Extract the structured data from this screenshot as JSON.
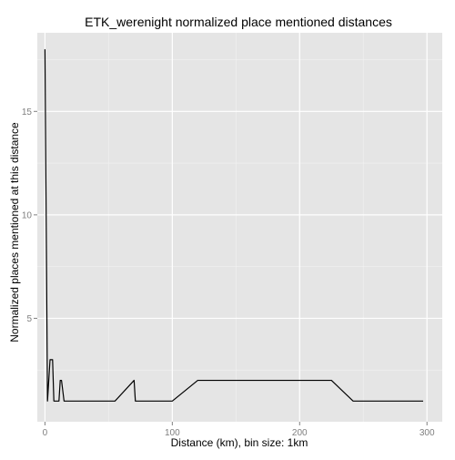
{
  "chart_data": {
    "type": "line",
    "title": "ETK_werenight normalized place mentioned distances",
    "xlabel": "Distance (km), bin size: 1km",
    "ylabel": "Normalized places mentioned at this distance",
    "xlim": [
      -6,
      312
    ],
    "ylim": [
      0.0,
      18.8
    ],
    "x_ticks": [
      0,
      100,
      200,
      300
    ],
    "y_ticks": [
      5,
      10,
      15
    ],
    "grid": true,
    "legend": "none",
    "colors": {
      "panel": "#e5e5e5",
      "grid_major": "#ffffff",
      "grid_minor": "#f2f2f2",
      "line": "#000000"
    },
    "series": [
      {
        "x": [
          0,
          2,
          4,
          6,
          7,
          11,
          12,
          13,
          15,
          55,
          70,
          71,
          100,
          120,
          225,
          242,
          297
        ],
        "values": [
          18,
          1,
          3,
          3,
          1,
          1,
          2,
          2,
          1,
          1,
          2,
          1,
          1,
          2,
          2,
          1,
          1
        ]
      }
    ]
  }
}
